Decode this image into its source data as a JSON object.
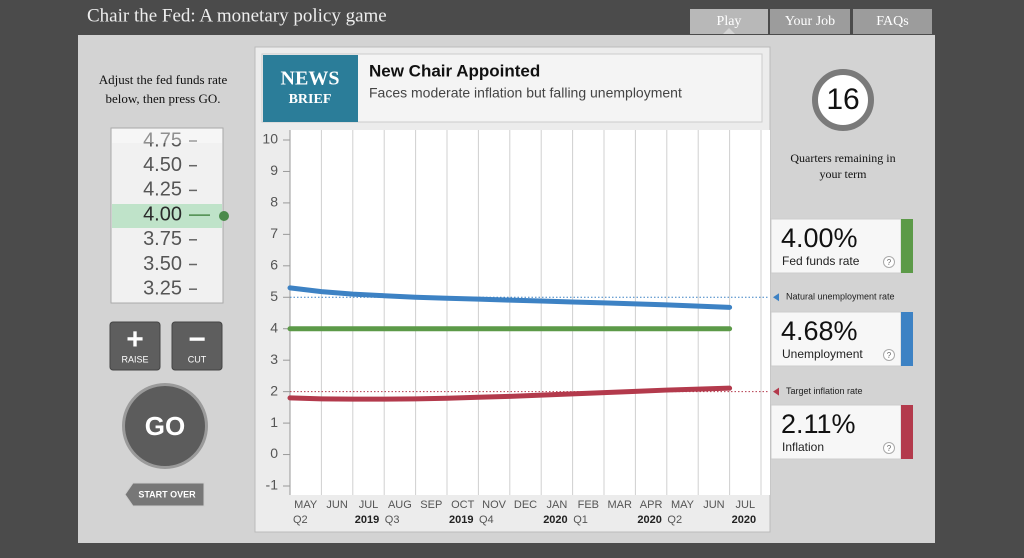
{
  "header": {
    "title": "Chair the Fed: A monetary policy game",
    "tabs": [
      "Play",
      "Your Job",
      "FAQs"
    ]
  },
  "controls": {
    "instructions": "Adjust the fed funds rate below, then press GO.",
    "rates": [
      "4.75",
      "4.50",
      "4.25",
      "4.00",
      "3.75",
      "3.50",
      "3.25"
    ],
    "raise": "RAISE",
    "cut": "CUT",
    "go": "GO",
    "start_over": "START OVER"
  },
  "news": {
    "badge_top": "NEWS",
    "badge_bottom": "BRIEF",
    "headline": "New Chair Appointed",
    "subtitle": "Faces moderate inflation but falling unemployment"
  },
  "chart_data": {
    "type": "line",
    "categories": [
      "MAY",
      "JUN",
      "JUL",
      "AUG",
      "SEP",
      "OCT",
      "NOV",
      "DEC",
      "JAN",
      "FEB",
      "MAR",
      "APR",
      "MAY",
      "JUN",
      "JUL"
    ],
    "years": [
      null,
      null,
      "2019",
      null,
      null,
      "2019",
      null,
      null,
      "2020",
      null,
      null,
      "2020",
      null,
      null,
      "2020"
    ],
    "quarters": [
      "Q2",
      null,
      "Q3",
      null,
      null,
      "Q4",
      null,
      null,
      "Q1",
      null,
      null,
      "Q2",
      null,
      null,
      null
    ],
    "ylim": [
      -1,
      10
    ],
    "yticks": [
      -1,
      0,
      1,
      2,
      3,
      4,
      5,
      6,
      7,
      8,
      9,
      10
    ],
    "series": [
      {
        "name": "Fed funds rate",
        "color": "#5c9a48",
        "values": [
          4,
          4,
          4,
          4,
          4,
          4,
          4,
          4,
          4,
          4,
          4,
          4,
          4,
          4,
          4
        ]
      },
      {
        "name": "Unemployment",
        "color": "#3d82c4",
        "values": [
          5.3,
          5.18,
          5.1,
          5.05,
          5.0,
          4.97,
          4.94,
          4.91,
          4.88,
          4.85,
          4.82,
          4.79,
          4.76,
          4.72,
          4.68
        ]
      },
      {
        "name": "Inflation",
        "color": "#b33a4c",
        "values": [
          1.8,
          1.77,
          1.76,
          1.76,
          1.77,
          1.79,
          1.82,
          1.85,
          1.89,
          1.93,
          1.97,
          2.01,
          2.05,
          2.08,
          2.11
        ]
      }
    ],
    "reference_lines": [
      {
        "label": "Natural unemployment rate",
        "value": 5,
        "color": "#3d82c4"
      },
      {
        "label": "Target inflation rate",
        "value": 2,
        "color": "#b33a4c"
      }
    ]
  },
  "status": {
    "quarters_remaining": 16,
    "quarters_label": "Quarters remaining in your term",
    "cards": [
      "4.00%",
      "4.68%",
      "2.11%"
    ],
    "help": "?"
  }
}
